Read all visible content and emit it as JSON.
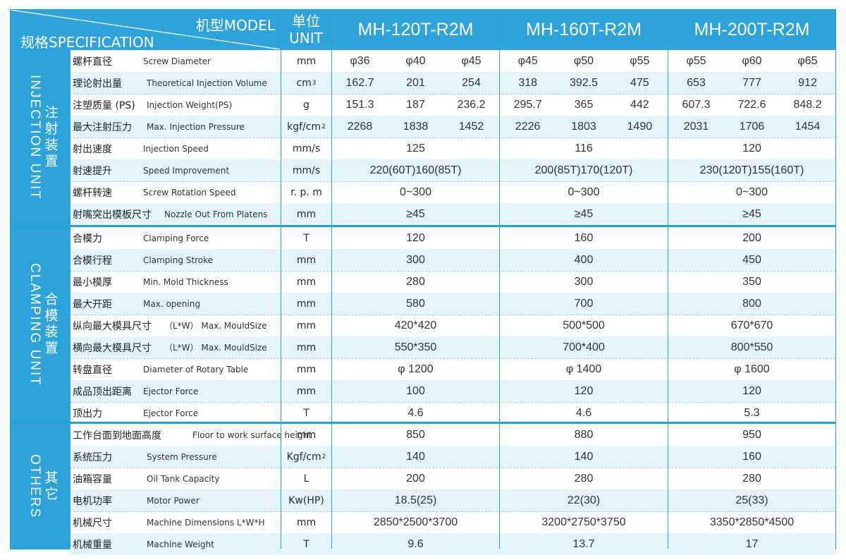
{
  "header": {
    "model_label": "机型MODEL",
    "spec_label": "规格SPECIFICATION",
    "unit_cn": "单位",
    "unit_en": "UNIT",
    "models": [
      "MH-120T-R2M",
      "MH-160T-R2M",
      "MH-200T-R2M"
    ]
  },
  "groups": {
    "injection": {
      "cn": "注射装置",
      "en": "INJECTION UNIT"
    },
    "clamping": {
      "cn": "合模装置",
      "en": "CLAMPING UNIT"
    },
    "others": {
      "cn": "其它",
      "en": "OTHERS"
    }
  },
  "colors": {
    "accent": "#2ea3d9",
    "row_alt": "#e4f2fa",
    "line": "#25a3d8"
  },
  "rows": [
    {
      "group": "injection",
      "cn": "螺杆直径",
      "en": "Screw  Diameter",
      "unit": "mm",
      "values": [
        "φ36",
        "φ40",
        "φ45",
        "φ45",
        "φ50",
        "φ55",
        "φ55",
        "φ60",
        "φ65"
      ]
    },
    {
      "group": "injection",
      "cn": "理论射出量",
      "en": "Theoretical  Injection  Volume",
      "unit": "cm",
      "unit_sup": "3",
      "values": [
        "162.7",
        "201",
        "254",
        "318",
        "392.5",
        "475",
        "653",
        "777",
        "912"
      ]
    },
    {
      "group": "injection",
      "cn": "注塑质量 (PS)",
      "en": "Injection  Weight(PS)",
      "unit": "g",
      "values": [
        "151.3",
        "187",
        "236.2",
        "295.7",
        "365",
        "442",
        "607.3",
        "722.6",
        "848.2"
      ]
    },
    {
      "group": "injection",
      "cn": "最大注射压力",
      "en": "Max. Injection  Pressure",
      "unit": "kgf/cm",
      "unit_sup": "2",
      "values": [
        "2268",
        "1838",
        "1452",
        "2226",
        "1803",
        "1490",
        "2031",
        "1706",
        "1454"
      ]
    },
    {
      "group": "injection",
      "cn": "射出速度",
      "en": "Injection  Speed",
      "unit": "mm/s",
      "values": [
        "125",
        "116",
        "120"
      ]
    },
    {
      "group": "injection",
      "cn": "射速提升",
      "en": "Speed Improvement",
      "unit": "mm/s",
      "values": [
        "220(60T)160(85T)",
        "200(85T)170(120T)",
        "230(120T)155(160T)"
      ]
    },
    {
      "group": "injection",
      "cn": "螺杆转速",
      "en": "Screw  Rotation  Speed",
      "unit": "r. p. m",
      "values": [
        "0~300",
        "0~300",
        "0~300"
      ]
    },
    {
      "group": "injection",
      "cn": "射嘴突出模板尺寸",
      "en": "Nozzle Out From Platens",
      "unit": "mm",
      "values": [
        "≥45",
        "≥45",
        "≥45"
      ]
    },
    {
      "group": "clamping",
      "cn": "合模力",
      "en": "Clamping  Force",
      "unit": "T",
      "values": [
        "120",
        "160",
        "200"
      ]
    },
    {
      "group": "clamping",
      "cn": "合模行程",
      "en": "Clamping  Stroke",
      "unit": "mm",
      "values": [
        "300",
        "400",
        "450"
      ]
    },
    {
      "group": "clamping",
      "cn": "最小模厚",
      "en": "Min. Mold  Thickness",
      "unit": "mm",
      "values": [
        "280",
        "300",
        "350"
      ]
    },
    {
      "group": "clamping",
      "cn": "最大开距",
      "en": "Max. opening",
      "unit": "mm",
      "values": [
        "580",
        "700",
        "800"
      ]
    },
    {
      "group": "clamping",
      "cn": "纵向最大模具尺寸",
      "en": "（L*W） Max. MouldSize",
      "unit": "mm",
      "values": [
        "420*420",
        "500*500",
        "670*670"
      ]
    },
    {
      "group": "clamping",
      "cn": "横向最大模具尺寸",
      "en": "（L*W） Max. MouldSize",
      "unit": "mm",
      "values": [
        "550*350",
        "700*400",
        "800*550"
      ]
    },
    {
      "group": "clamping",
      "cn": "转盘直径",
      "en": "Diameter  of  Rotary  Table",
      "unit": "mm",
      "values": [
        "φ 1200",
        "φ 1400",
        "φ 1600"
      ]
    },
    {
      "group": "clamping",
      "cn": "成品顶出距离",
      "en": "Ejector  Force",
      "unit": "mm",
      "values": [
        "100",
        "120",
        "120"
      ]
    },
    {
      "group": "clamping",
      "cn": "顶出力",
      "en": "Ejector  Force",
      "unit": "T",
      "values": [
        "4.6",
        "4.6",
        "5.3"
      ]
    },
    {
      "group": "others",
      "cn": "工作台面到地面高度",
      "en": "Floor to work surface height",
      "unit": "mm",
      "values": [
        "850",
        "880",
        "950"
      ]
    },
    {
      "group": "others",
      "cn": "系统压力",
      "en": "System  Pressure",
      "unit": "Kgf/cm",
      "unit_sup": "2",
      "values": [
        "140",
        "140",
        "160"
      ]
    },
    {
      "group": "others",
      "cn": "油箱容量",
      "en": "Oil  Tank Capacity",
      "unit": "L",
      "values": [
        "200",
        "280",
        "280"
      ]
    },
    {
      "group": "others",
      "cn": "电机功率",
      "en": "Motor Power",
      "unit": "Kw(HP)",
      "values": [
        "18.5(25)",
        "22(30)",
        "25(33)"
      ]
    },
    {
      "group": "others",
      "cn": "机械尺寸",
      "en": "Machine Dimensions    L*W*H",
      "unit": "mm",
      "values": [
        "2850*2500*3700",
        "3200*2750*3750",
        "3350*2850*4500"
      ]
    },
    {
      "group": "others",
      "cn": "机械重量",
      "en": "Machine Weight",
      "unit": "T",
      "values": [
        "9.6",
        "13.7",
        "17"
      ]
    }
  ]
}
